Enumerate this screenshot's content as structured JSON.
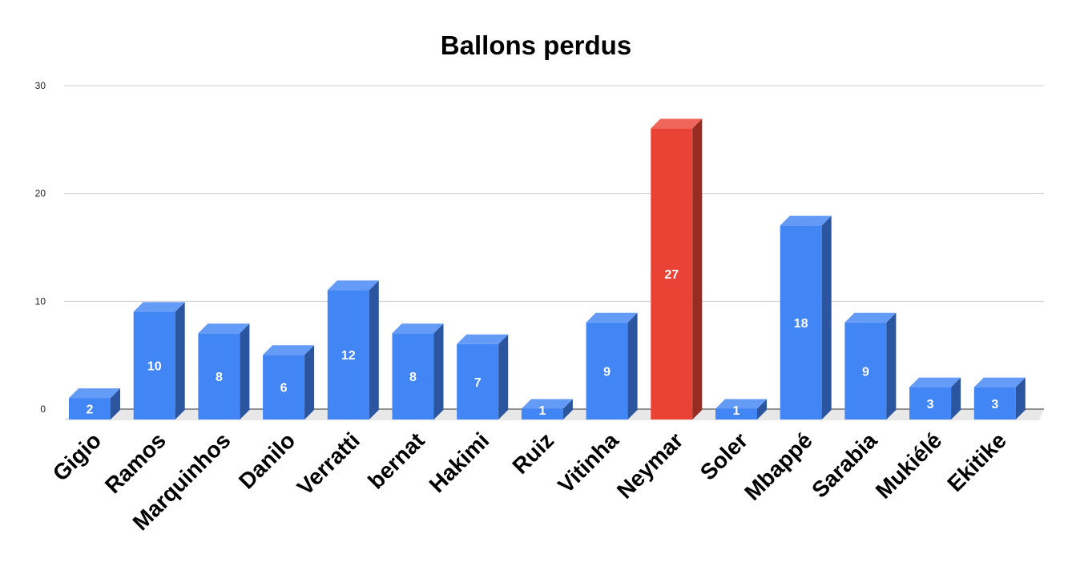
{
  "chart_data": {
    "type": "bar",
    "title": "Ballons perdus",
    "xlabel": "",
    "ylabel": "",
    "ylim": [
      0,
      30
    ],
    "yticks": [
      0,
      10,
      20,
      30
    ],
    "grid": true,
    "style": "3d",
    "categories": [
      "Gigio",
      "Ramos",
      "Marquinhos",
      "Danilo",
      "Verratti",
      "bernat",
      "Hakimi",
      "Ruiz",
      "Vitinha",
      "Neymar",
      "Soler",
      "Mbappé",
      "Sarabia",
      "Mukiélé",
      "Ekitike"
    ],
    "values": [
      2,
      10,
      8,
      6,
      12,
      8,
      7,
      1,
      9,
      27,
      1,
      18,
      9,
      3,
      3
    ],
    "bar_colors": [
      "#4285f4",
      "#4285f4",
      "#4285f4",
      "#4285f4",
      "#4285f4",
      "#4285f4",
      "#4285f4",
      "#4285f4",
      "#4285f4",
      "#ea4335",
      "#4285f4",
      "#4285f4",
      "#4285f4",
      "#4285f4",
      "#4285f4"
    ]
  }
}
